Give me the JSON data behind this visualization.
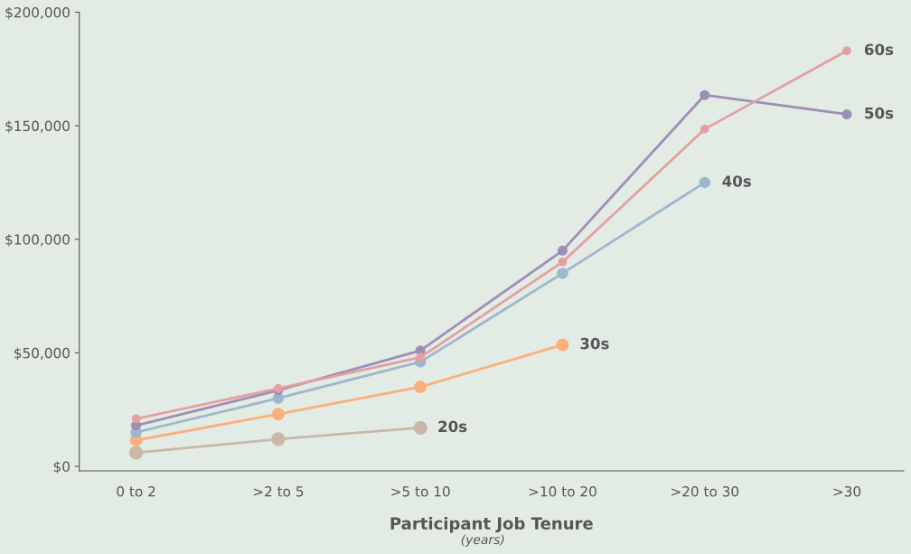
{
  "chart_data": {
    "type": "line",
    "xlabel": "Participant Job Tenure",
    "annotations": [
      "(years)"
    ],
    "categories": [
      "0 to 2",
      ">2 to 5",
      ">5 to 10",
      ">10 to 20",
      ">20 to 30",
      ">30"
    ],
    "series": [
      {
        "name": "20s",
        "color": "#c9b8a8",
        "values": [
          6000,
          12000,
          17000,
          null,
          null,
          null
        ]
      },
      {
        "name": "30s",
        "color": "#fbb07a",
        "values": [
          11500,
          23000,
          35000,
          53500,
          null,
          null
        ]
      },
      {
        "name": "40s",
        "color": "#9db8cc",
        "values": [
          15000,
          30000,
          46000,
          85000,
          125000,
          null
        ]
      },
      {
        "name": "50s",
        "color": "#9e8fb5",
        "values": [
          18000,
          33500,
          51000,
          95000,
          163500,
          155000
        ]
      },
      {
        "name": "60s",
        "color": "#e3a0a0",
        "values": [
          21000,
          34300,
          48000,
          90000,
          148500,
          183000
        ]
      }
    ],
    "ylim": [
      -2000,
      200000
    ],
    "yticks": [
      {
        "value": 0,
        "label": "$0"
      },
      {
        "value": 50000,
        "label": "$50,000"
      },
      {
        "value": 100000,
        "label": "$100,000"
      },
      {
        "value": 150000,
        "label": "$150,000"
      },
      {
        "value": 200000,
        "label": "$200,000"
      }
    ],
    "grid": false,
    "legend": false,
    "marker": "circle",
    "line_style": "solid"
  }
}
